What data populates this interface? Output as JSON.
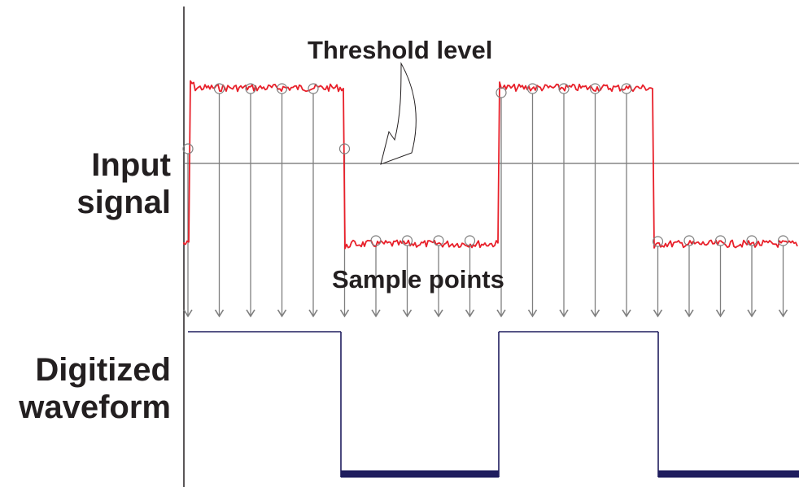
{
  "labels": {
    "input_line1": "Input",
    "input_line2": "signal",
    "digitized_line1": "Digitized",
    "digitized_line2": "waveform",
    "threshold": "Threshold level",
    "samples": "Sample points"
  },
  "colors": {
    "input_signal": "#e8202a",
    "digitized": "#1f1d5e",
    "axis": "#231f20",
    "sample_arrow": "#7f7f7f",
    "threshold_line": "#6d6d6d"
  },
  "input_levels": {
    "high": 1,
    "low": 0,
    "threshold": 0.5
  },
  "input_transitions": [
    {
      "from": 0,
      "to": 1
    },
    {
      "from": 1,
      "to": 0
    },
    {
      "from": 0,
      "to": 1
    },
    {
      "from": 1,
      "to": 0
    }
  ],
  "sample_count": 20,
  "digitized_bits": [
    1,
    1,
    1,
    1,
    1,
    0,
    0,
    0,
    0,
    0,
    1,
    1,
    1,
    1,
    1,
    0,
    0,
    0,
    0,
    0
  ]
}
